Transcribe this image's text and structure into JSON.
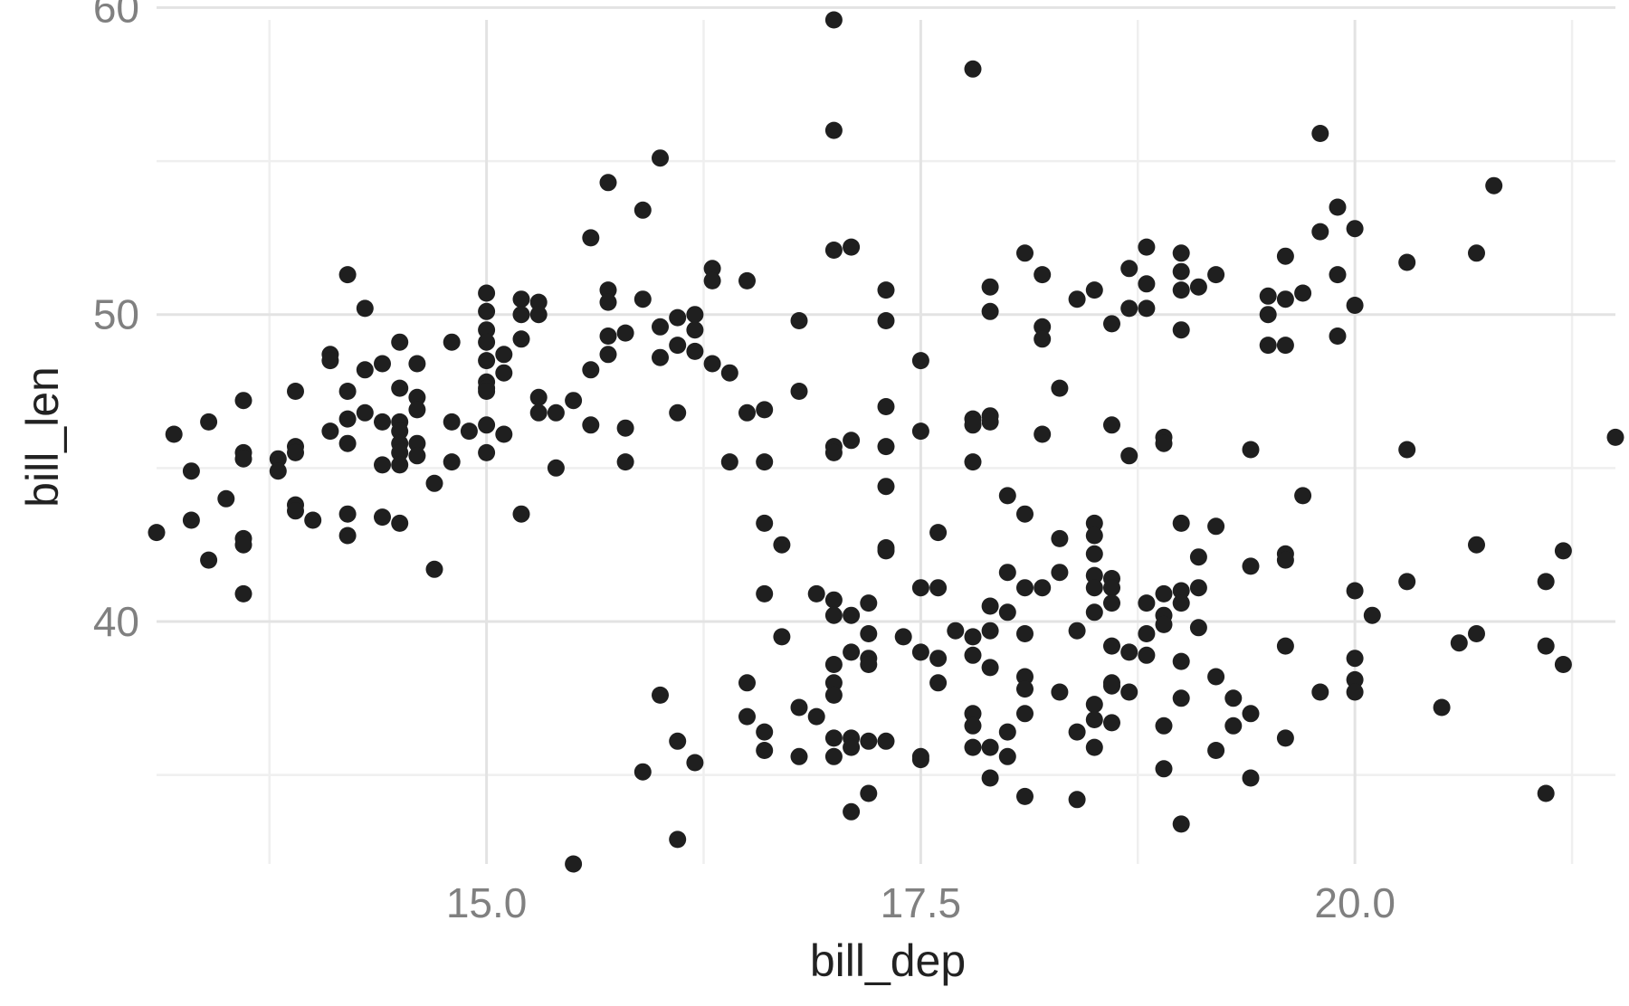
{
  "chart_data": {
    "type": "scatter",
    "title": "",
    "xlabel": "bill_dep",
    "ylabel": "bill_len",
    "xlim": [
      13.1,
      21.5
    ],
    "ylim": [
      32.1,
      59.6
    ],
    "x_ticks": [
      15.0,
      17.5,
      20.0
    ],
    "x_tick_labels": [
      "15.0",
      "17.5",
      "20.0"
    ],
    "x_minor_ticks": [
      13.75,
      16.25,
      18.75,
      21.25
    ],
    "y_ticks": [
      40,
      50,
      60
    ],
    "y_tick_labels": [
      "40",
      "50",
      "60"
    ],
    "y_minor_ticks": [
      35,
      45,
      55
    ],
    "grid": true,
    "legend": "none",
    "point_color": "#1f1f1f",
    "points": [
      [
        17.0,
        59.6
      ],
      [
        17.8,
        58.0
      ],
      [
        17.0,
        56.0
      ],
      [
        19.8,
        55.9
      ],
      [
        16.0,
        55.1
      ],
      [
        15.7,
        54.3
      ],
      [
        20.8,
        54.2
      ],
      [
        19.9,
        53.5
      ],
      [
        15.9,
        53.4
      ],
      [
        19.8,
        52.7
      ],
      [
        20.0,
        52.8
      ],
      [
        15.6,
        52.5
      ],
      [
        18.8,
        52.2
      ],
      [
        17.1,
        52.2
      ],
      [
        17.0,
        52.1
      ],
      [
        18.1,
        52.0
      ],
      [
        19.0,
        52.0
      ],
      [
        20.7,
        52.0
      ],
      [
        19.6,
        51.9
      ],
      [
        20.3,
        51.7
      ],
      [
        16.3,
        51.5
      ],
      [
        18.7,
        51.5
      ],
      [
        19.0,
        51.4
      ],
      [
        18.2,
        51.3
      ],
      [
        19.2,
        51.3
      ],
      [
        19.9,
        51.3
      ],
      [
        14.2,
        51.3
      ],
      [
        16.3,
        51.1
      ],
      [
        16.5,
        51.1
      ],
      [
        18.8,
        51.0
      ],
      [
        19.1,
        50.9
      ],
      [
        17.9,
        50.9
      ],
      [
        15.7,
        50.8
      ],
      [
        18.5,
        50.8
      ],
      [
        19.0,
        50.8
      ],
      [
        17.3,
        50.8
      ],
      [
        19.7,
        50.7
      ],
      [
        15.0,
        50.7
      ],
      [
        19.5,
        50.6
      ],
      [
        18.4,
        50.5
      ],
      [
        15.2,
        50.5
      ],
      [
        15.9,
        50.5
      ],
      [
        19.6,
        50.5
      ],
      [
        15.3,
        50.4
      ],
      [
        15.7,
        50.4
      ],
      [
        20.0,
        50.3
      ],
      [
        18.7,
        50.2
      ],
      [
        18.8,
        50.2
      ],
      [
        14.3,
        50.2
      ],
      [
        17.9,
        50.1
      ],
      [
        15.0,
        50.1
      ],
      [
        15.2,
        50.0
      ],
      [
        15.3,
        50.0
      ],
      [
        16.2,
        50.0
      ],
      [
        19.5,
        50.0
      ],
      [
        16.1,
        49.9
      ],
      [
        17.3,
        49.8
      ],
      [
        16.8,
        49.8
      ],
      [
        18.6,
        49.7
      ],
      [
        16.0,
        49.6
      ],
      [
        18.2,
        49.6
      ],
      [
        16.2,
        49.5
      ],
      [
        19.0,
        49.5
      ],
      [
        15.0,
        49.5
      ],
      [
        15.8,
        49.4
      ],
      [
        15.7,
        49.3
      ],
      [
        19.9,
        49.3
      ],
      [
        18.2,
        49.2
      ],
      [
        15.2,
        49.2
      ],
      [
        14.8,
        49.1
      ],
      [
        14.5,
        49.1
      ],
      [
        15.0,
        49.1
      ],
      [
        16.1,
        49.0
      ],
      [
        19.5,
        49.0
      ],
      [
        19.6,
        49.0
      ],
      [
        16.2,
        48.8
      ],
      [
        15.1,
        48.7
      ],
      [
        15.7,
        48.7
      ],
      [
        14.1,
        48.7
      ],
      [
        16.0,
        48.6
      ],
      [
        17.5,
        48.5
      ],
      [
        14.1,
        48.5
      ],
      [
        15.0,
        48.5
      ],
      [
        16.3,
        48.4
      ],
      [
        14.4,
        48.4
      ],
      [
        14.6,
        48.4
      ],
      [
        14.3,
        48.2
      ],
      [
        15.6,
        48.2
      ],
      [
        16.4,
        48.1
      ],
      [
        15.1,
        48.1
      ],
      [
        15.0,
        47.8
      ],
      [
        18.3,
        47.6
      ],
      [
        14.5,
        47.6
      ],
      [
        15.0,
        47.6
      ],
      [
        16.8,
        47.5
      ],
      [
        14.2,
        47.5
      ],
      [
        13.9,
        47.5
      ],
      [
        15.0,
        47.5
      ],
      [
        14.6,
        47.3
      ],
      [
        15.3,
        47.3
      ],
      [
        13.6,
        47.2
      ],
      [
        15.5,
        47.2
      ],
      [
        17.3,
        47.0
      ],
      [
        16.6,
        46.9
      ],
      [
        14.6,
        46.9
      ],
      [
        15.3,
        46.8
      ],
      [
        16.1,
        46.8
      ],
      [
        16.5,
        46.8
      ],
      [
        14.3,
        46.8
      ],
      [
        15.4,
        46.8
      ],
      [
        17.8,
        46.6
      ],
      [
        17.9,
        46.7
      ],
      [
        14.2,
        46.6
      ],
      [
        14.5,
        46.5
      ],
      [
        13.4,
        46.5
      ],
      [
        14.4,
        46.5
      ],
      [
        17.8,
        46.4
      ],
      [
        17.9,
        46.5
      ],
      [
        14.8,
        46.5
      ],
      [
        15.0,
        46.4
      ],
      [
        18.6,
        46.4
      ],
      [
        15.6,
        46.4
      ],
      [
        15.8,
        46.3
      ],
      [
        14.5,
        46.2
      ],
      [
        14.1,
        46.2
      ],
      [
        14.9,
        46.2
      ],
      [
        17.5,
        46.2
      ],
      [
        13.2,
        46.1
      ],
      [
        18.2,
        46.1
      ],
      [
        15.1,
        46.1
      ],
      [
        18.9,
        46.0
      ],
      [
        21.5,
        46.0
      ],
      [
        18.9,
        45.8
      ],
      [
        17.1,
        45.9
      ],
      [
        14.5,
        45.8
      ],
      [
        14.2,
        45.8
      ],
      [
        14.6,
        45.8
      ],
      [
        13.9,
        45.7
      ],
      [
        17.3,
        45.7
      ],
      [
        17.0,
        45.7
      ],
      [
        19.4,
        45.6
      ],
      [
        20.3,
        45.6
      ],
      [
        17.0,
        45.5
      ],
      [
        18.7,
        45.4
      ],
      [
        13.6,
        45.5
      ],
      [
        14.5,
        45.5
      ],
      [
        15.0,
        45.5
      ],
      [
        13.9,
        45.5
      ],
      [
        14.6,
        45.4
      ],
      [
        13.6,
        45.3
      ],
      [
        13.8,
        45.3
      ],
      [
        16.4,
        45.2
      ],
      [
        16.6,
        45.2
      ],
      [
        17.8,
        45.2
      ],
      [
        14.8,
        45.2
      ],
      [
        15.8,
        45.2
      ],
      [
        14.5,
        45.1
      ],
      [
        14.4,
        45.1
      ],
      [
        15.4,
        45.0
      ],
      [
        13.8,
        44.9
      ],
      [
        13.3,
        44.9
      ],
      [
        14.7,
        44.5
      ],
      [
        17.3,
        44.4
      ],
      [
        19.7,
        44.1
      ],
      [
        18.0,
        44.1
      ],
      [
        13.5,
        44.0
      ],
      [
        13.9,
        43.8
      ],
      [
        13.9,
        43.6
      ],
      [
        15.2,
        43.5
      ],
      [
        18.1,
        43.5
      ],
      [
        14.2,
        43.5
      ],
      [
        14.4,
        43.4
      ],
      [
        14.0,
        43.3
      ],
      [
        13.3,
        43.3
      ],
      [
        14.5,
        43.2
      ],
      [
        18.5,
        43.2
      ],
      [
        19.0,
        43.2
      ],
      [
        16.6,
        43.2
      ],
      [
        19.2,
        43.1
      ],
      [
        17.6,
        42.9
      ],
      [
        18.5,
        42.8
      ],
      [
        14.2,
        42.8
      ],
      [
        13.1,
        42.9
      ],
      [
        18.3,
        42.7
      ],
      [
        13.6,
        42.7
      ],
      [
        13.6,
        42.5
      ],
      [
        20.7,
        42.5
      ],
      [
        16.7,
        42.5
      ],
      [
        17.3,
        42.4
      ],
      [
        17.3,
        42.3
      ],
      [
        21.2,
        42.3
      ],
      [
        18.5,
        42.2
      ],
      [
        19.6,
        42.2
      ],
      [
        19.1,
        42.1
      ],
      [
        13.4,
        42.0
      ],
      [
        19.6,
        42.0
      ],
      [
        19.4,
        41.8
      ],
      [
        14.7,
        41.7
      ],
      [
        18.0,
        41.6
      ],
      [
        18.3,
        41.6
      ],
      [
        18.5,
        41.5
      ],
      [
        18.6,
        41.4
      ],
      [
        20.3,
        41.3
      ],
      [
        21.1,
        41.3
      ],
      [
        18.5,
        41.1
      ],
      [
        17.6,
        41.1
      ],
      [
        17.5,
        41.1
      ],
      [
        18.1,
        41.1
      ],
      [
        18.2,
        41.1
      ],
      [
        18.6,
        41.1
      ],
      [
        19.0,
        41.0
      ],
      [
        19.1,
        41.1
      ],
      [
        20.0,
        41.0
      ],
      [
        16.6,
        40.9
      ],
      [
        16.9,
        40.9
      ],
      [
        13.6,
        40.9
      ],
      [
        18.9,
        40.9
      ],
      [
        18.8,
        40.6
      ],
      [
        17.0,
        40.7
      ],
      [
        17.2,
        40.6
      ],
      [
        18.6,
        40.6
      ],
      [
        19.0,
        40.6
      ],
      [
        17.9,
        40.5
      ],
      [
        18.0,
        40.3
      ],
      [
        18.5,
        40.3
      ],
      [
        20.1,
        40.2
      ],
      [
        17.0,
        40.2
      ],
      [
        17.1,
        40.2
      ],
      [
        18.9,
        40.2
      ],
      [
        18.9,
        39.9
      ],
      [
        19.1,
        39.8
      ],
      [
        17.7,
        39.7
      ],
      [
        17.9,
        39.7
      ],
      [
        18.4,
        39.7
      ],
      [
        17.2,
        39.6
      ],
      [
        18.1,
        39.6
      ],
      [
        20.7,
        39.6
      ],
      [
        18.8,
        39.6
      ],
      [
        17.8,
        39.5
      ],
      [
        16.7,
        39.5
      ],
      [
        17.4,
        39.5
      ],
      [
        20.6,
        39.3
      ],
      [
        18.6,
        39.2
      ],
      [
        21.1,
        39.2
      ],
      [
        19.6,
        39.2
      ],
      [
        18.7,
        39.0
      ],
      [
        17.1,
        39.0
      ],
      [
        17.5,
        39.0
      ],
      [
        18.8,
        38.9
      ],
      [
        17.8,
        38.9
      ],
      [
        17.6,
        38.8
      ],
      [
        17.2,
        38.8
      ],
      [
        20.0,
        38.8
      ],
      [
        19.0,
        38.7
      ],
      [
        17.0,
        38.6
      ],
      [
        17.2,
        38.6
      ],
      [
        21.2,
        38.6
      ],
      [
        17.9,
        38.5
      ],
      [
        19.2,
        38.2
      ],
      [
        18.1,
        38.2
      ],
      [
        20.0,
        38.1
      ],
      [
        18.6,
        38.0
      ],
      [
        17.0,
        38.0
      ],
      [
        16.5,
        38.0
      ],
      [
        17.6,
        38.0
      ],
      [
        18.6,
        37.9
      ],
      [
        18.1,
        37.8
      ],
      [
        18.3,
        37.7
      ],
      [
        18.7,
        37.7
      ],
      [
        19.8,
        37.7
      ],
      [
        20.0,
        37.7
      ],
      [
        16.0,
        37.6
      ],
      [
        17.0,
        37.6
      ],
      [
        19.3,
        37.5
      ],
      [
        19.0,
        37.5
      ],
      [
        18.5,
        37.3
      ],
      [
        16.8,
        37.2
      ],
      [
        20.5,
        37.2
      ],
      [
        18.1,
        37.0
      ],
      [
        19.4,
        37.0
      ],
      [
        17.8,
        37.0
      ],
      [
        16.5,
        36.9
      ],
      [
        16.9,
        36.9
      ],
      [
        18.5,
        36.8
      ],
      [
        18.6,
        36.7
      ],
      [
        17.8,
        36.6
      ],
      [
        18.9,
        36.6
      ],
      [
        19.3,
        36.6
      ],
      [
        16.6,
        36.4
      ],
      [
        18.0,
        36.4
      ],
      [
        18.4,
        36.4
      ],
      [
        17.0,
        36.2
      ],
      [
        17.1,
        36.2
      ],
      [
        17.2,
        36.1
      ],
      [
        19.6,
        36.2
      ],
      [
        17.3,
        36.1
      ],
      [
        16.1,
        36.1
      ],
      [
        17.8,
        35.9
      ],
      [
        17.9,
        35.9
      ],
      [
        18.5,
        35.9
      ],
      [
        17.1,
        35.9
      ],
      [
        16.6,
        35.8
      ],
      [
        19.2,
        35.8
      ],
      [
        18.0,
        35.6
      ],
      [
        16.8,
        35.6
      ],
      [
        17.0,
        35.6
      ],
      [
        17.5,
        35.6
      ],
      [
        17.5,
        35.5
      ],
      [
        16.2,
        35.4
      ],
      [
        18.9,
        35.2
      ],
      [
        15.9,
        35.1
      ],
      [
        17.9,
        34.9
      ],
      [
        19.4,
        34.9
      ],
      [
        17.2,
        34.4
      ],
      [
        18.1,
        34.3
      ],
      [
        18.4,
        34.2
      ],
      [
        21.1,
        34.4
      ],
      [
        17.1,
        33.8
      ],
      [
        19.0,
        33.4
      ],
      [
        16.1,
        32.9
      ],
      [
        15.5,
        32.1
      ]
    ]
  }
}
